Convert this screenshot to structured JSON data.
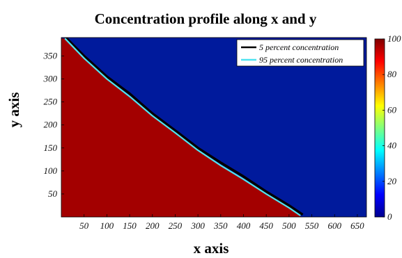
{
  "chart_data": {
    "type": "heatmap",
    "title": "Concentration profile along x and  y",
    "xlabel": "x axis",
    "ylabel": "y axis",
    "xlim": [
      0,
      670
    ],
    "ylim": [
      0,
      390
    ],
    "x_ticks": [
      50,
      100,
      150,
      200,
      250,
      300,
      350,
      400,
      450,
      500,
      550,
      600,
      650
    ],
    "y_ticks": [
      50,
      100,
      150,
      200,
      250,
      300,
      350
    ],
    "colorbar": {
      "range": [
        0,
        100
      ],
      "ticks": [
        0,
        20,
        40,
        60,
        80,
        100
      ],
      "colormap": "jet"
    },
    "field": {
      "high_value": 100,
      "low_value": 0,
      "high_color": "#a30000",
      "low_color": "#001a9c",
      "high_region": "below-front"
    },
    "series": [
      {
        "name": "5 percent concentration",
        "color": "#000000",
        "x": [
          10,
          50,
          100,
          150,
          200,
          250,
          300,
          350,
          400,
          450,
          500,
          530
        ],
        "y": [
          390,
          350,
          305,
          268,
          225,
          188,
          150,
          118,
          88,
          55,
          25,
          5
        ]
      },
      {
        "name": "95 percent concentration",
        "color": "#4fe3f0",
        "x": [
          8,
          50,
          100,
          150,
          200,
          250,
          300,
          350,
          400,
          450,
          500,
          525
        ],
        "y": [
          388,
          345,
          300,
          262,
          220,
          183,
          145,
          112,
          82,
          50,
          20,
          3
        ]
      }
    ],
    "legend": "top-right",
    "grid": false
  }
}
